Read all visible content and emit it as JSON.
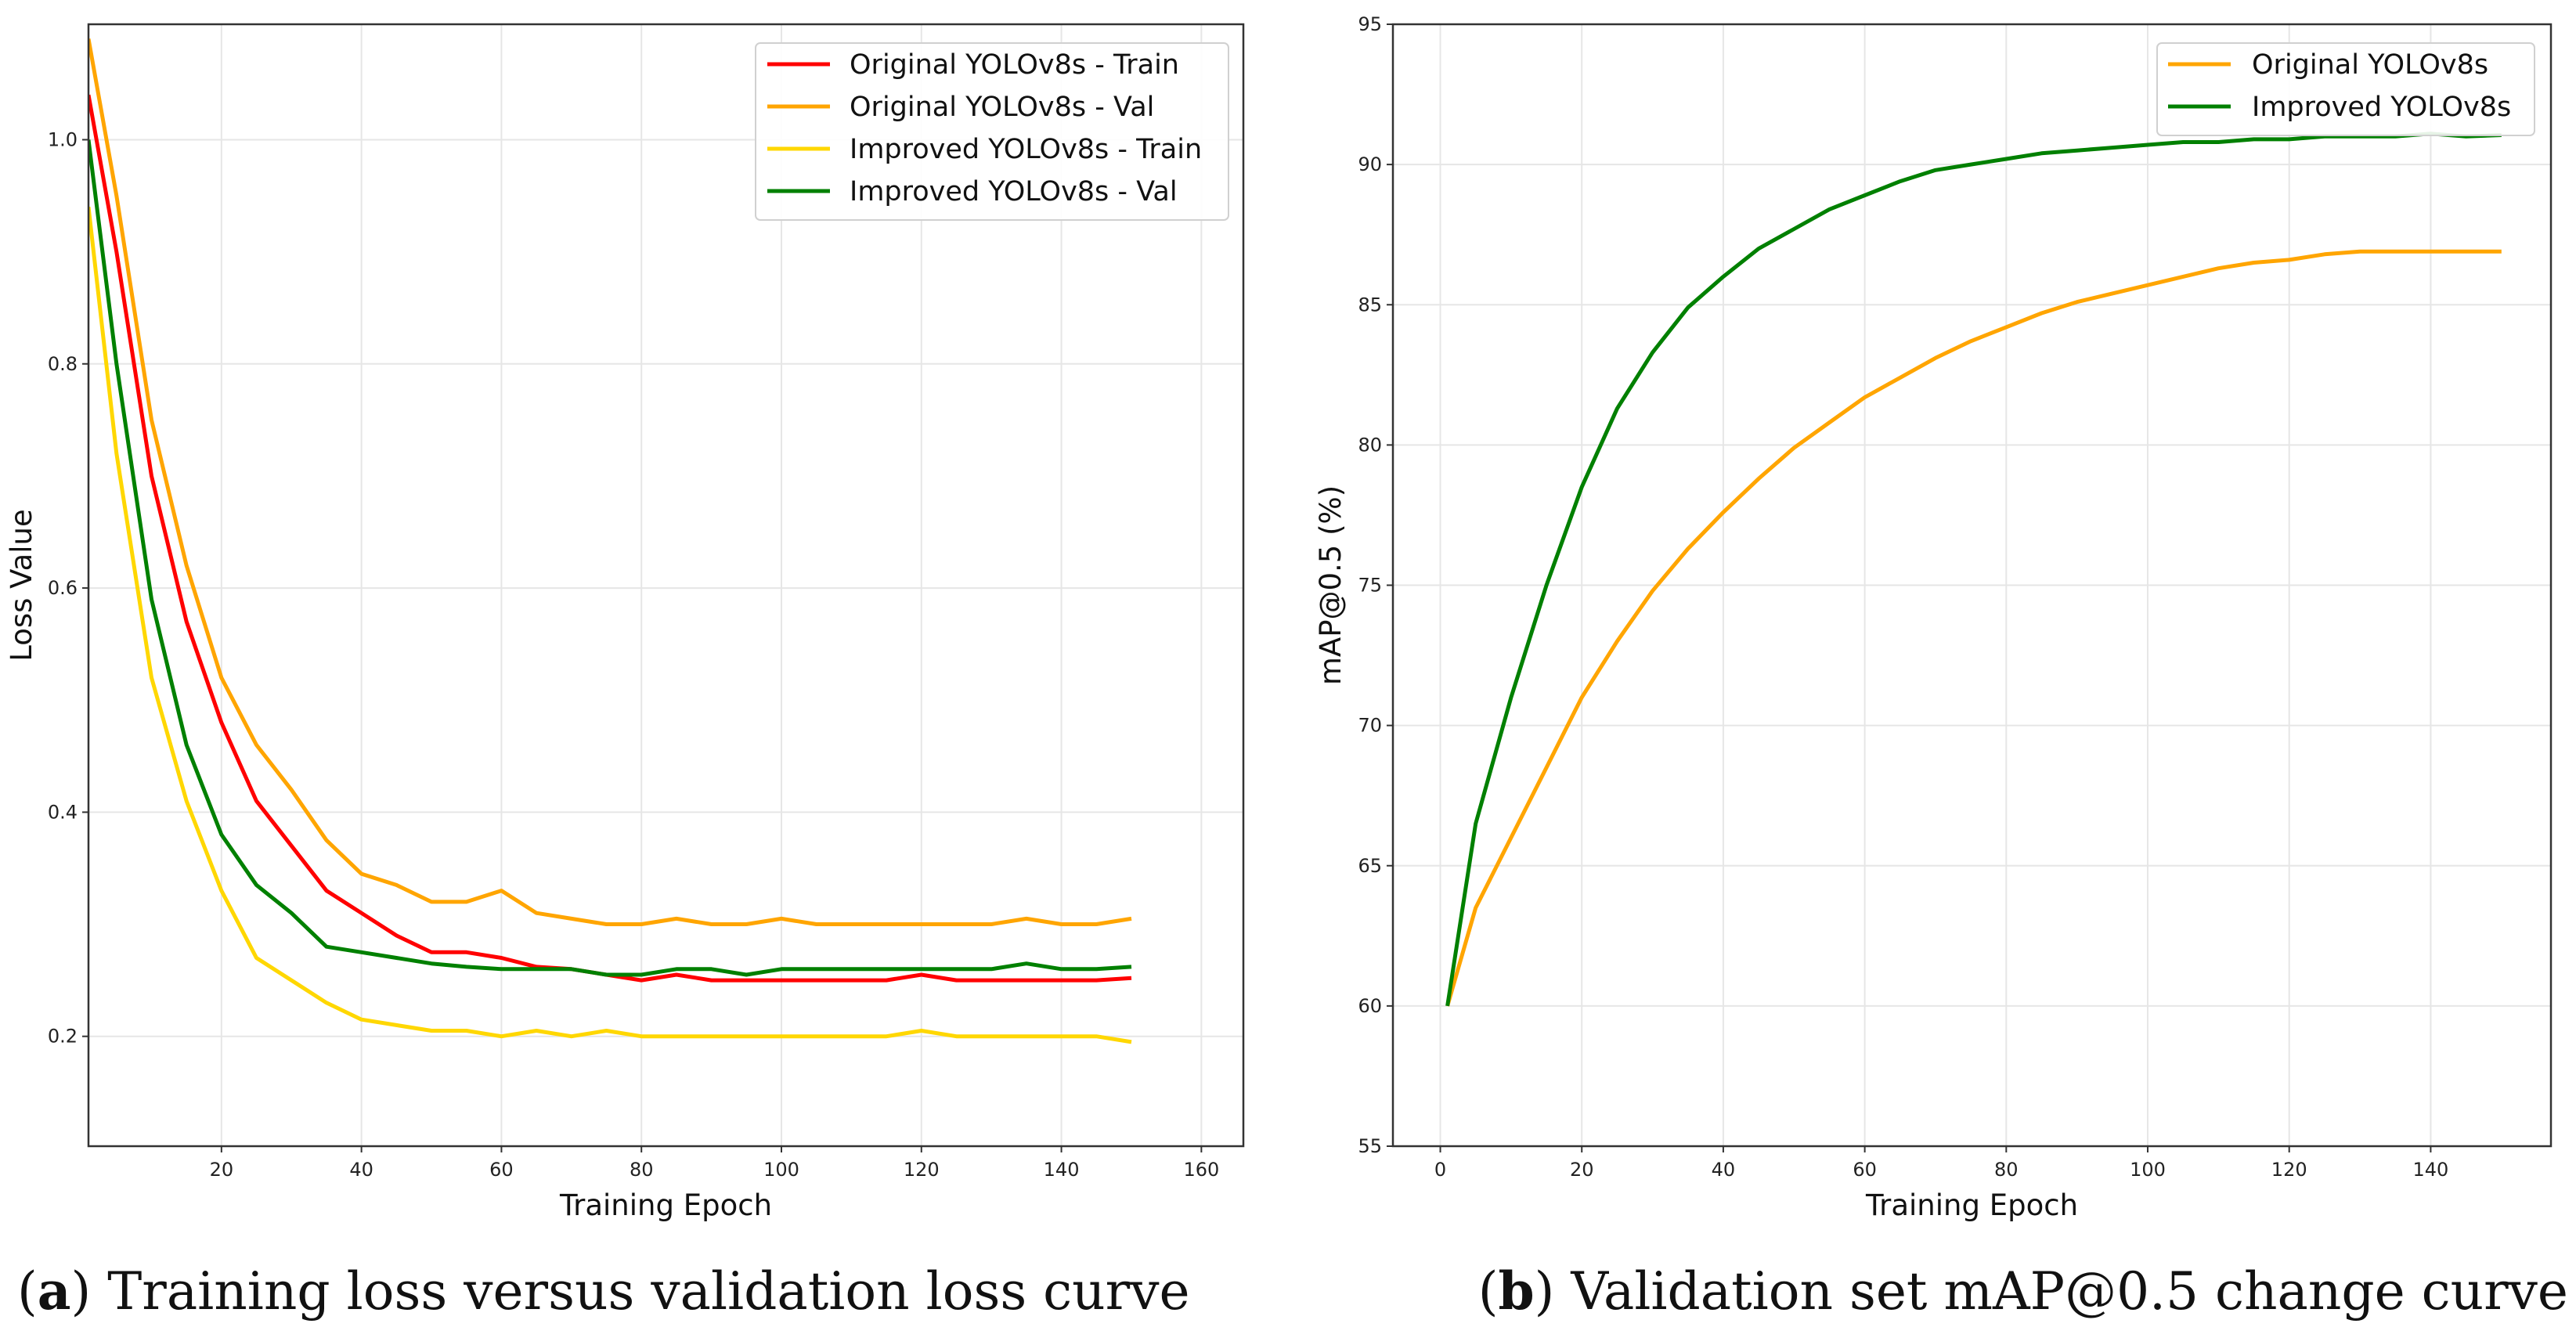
{
  "chart_data": [
    {
      "type": "line",
      "title": "",
      "xlabel": "Training Epoch",
      "ylabel": "Loss Value",
      "xlim": [
        1,
        166
      ],
      "ylim": [
        0.102,
        1.103
      ],
      "xticks": [
        20,
        40,
        60,
        80,
        100,
        120,
        140,
        160
      ],
      "yticks": [
        0.2,
        0.4,
        0.6,
        0.8,
        1.0
      ],
      "ytick_labels": [
        "0.2",
        "0.4",
        "0.6",
        "0.8",
        "1.0"
      ],
      "grid": true,
      "legend_position": "top-right",
      "x": [
        1,
        5,
        10,
        15,
        20,
        25,
        30,
        35,
        40,
        45,
        50,
        55,
        60,
        65,
        70,
        75,
        80,
        85,
        90,
        95,
        100,
        105,
        110,
        115,
        120,
        125,
        130,
        135,
        140,
        145,
        150
      ],
      "series": [
        {
          "name": "Original YOLOv8s - Train",
          "color": "#ff0000",
          "values": [
            1.04,
            0.9,
            0.7,
            0.57,
            0.48,
            0.41,
            0.37,
            0.33,
            0.31,
            0.29,
            0.275,
            0.275,
            0.27,
            0.262,
            0.26,
            0.255,
            0.25,
            0.255,
            0.25,
            0.25,
            0.25,
            0.25,
            0.25,
            0.25,
            0.255,
            0.25,
            0.25,
            0.25,
            0.25,
            0.25,
            0.252
          ]
        },
        {
          "name": "Original YOLOv8s - Val",
          "color": "#ffa500",
          "values": [
            1.09,
            0.95,
            0.75,
            0.62,
            0.52,
            0.46,
            0.42,
            0.375,
            0.345,
            0.335,
            0.32,
            0.32,
            0.33,
            0.31,
            0.305,
            0.3,
            0.3,
            0.305,
            0.3,
            0.3,
            0.305,
            0.3,
            0.3,
            0.3,
            0.3,
            0.3,
            0.3,
            0.305,
            0.3,
            0.3,
            0.305
          ]
        },
        {
          "name": "Improved YOLOv8s - Train",
          "color": "#ffd700",
          "values": [
            0.94,
            0.72,
            0.52,
            0.41,
            0.33,
            0.27,
            0.25,
            0.23,
            0.215,
            0.21,
            0.205,
            0.205,
            0.2,
            0.205,
            0.2,
            0.205,
            0.2,
            0.2,
            0.2,
            0.2,
            0.2,
            0.2,
            0.2,
            0.2,
            0.205,
            0.2,
            0.2,
            0.2,
            0.2,
            0.2,
            0.195
          ]
        },
        {
          "name": "Improved YOLOv8s - Val",
          "color": "#008000",
          "values": [
            1.0,
            0.8,
            0.59,
            0.46,
            0.38,
            0.335,
            0.31,
            0.28,
            0.275,
            0.27,
            0.265,
            0.262,
            0.26,
            0.26,
            0.26,
            0.255,
            0.255,
            0.26,
            0.26,
            0.255,
            0.26,
            0.26,
            0.26,
            0.26,
            0.26,
            0.26,
            0.26,
            0.265,
            0.26,
            0.26,
            0.262
          ]
        }
      ]
    },
    {
      "type": "line",
      "title": "",
      "xlabel": "Training Epoch",
      "ylabel": "mAP@0.5 (%)",
      "xlim": [
        -6.7,
        157
      ],
      "ylim": [
        55,
        95
      ],
      "xticks": [
        0,
        20,
        40,
        60,
        80,
        100,
        120,
        140
      ],
      "yticks": [
        55,
        60,
        65,
        70,
        75,
        80,
        85,
        90,
        95
      ],
      "ytick_labels": [
        "55",
        "60",
        "65",
        "70",
        "75",
        "80",
        "85",
        "90",
        "95"
      ],
      "grid": true,
      "legend_position": "top-right",
      "x": [
        1,
        5,
        10,
        15,
        20,
        25,
        30,
        35,
        40,
        45,
        50,
        55,
        60,
        65,
        70,
        75,
        80,
        85,
        90,
        95,
        100,
        105,
        110,
        115,
        120,
        125,
        130,
        135,
        140,
        145,
        150
      ],
      "series": [
        {
          "name": "Original YOLOv8s",
          "color": "#ffa500",
          "values": [
            60,
            63.5,
            66,
            68.5,
            71,
            73,
            74.8,
            76.3,
            77.6,
            78.8,
            79.9,
            80.8,
            81.7,
            82.4,
            83.1,
            83.7,
            84.2,
            84.7,
            85.1,
            85.4,
            85.7,
            86.0,
            86.3,
            86.5,
            86.6,
            86.8,
            86.9,
            86.9,
            86.9,
            86.9,
            86.9
          ]
        },
        {
          "name": "Improved YOLOv8s",
          "color": "#008000",
          "values": [
            60,
            66.5,
            71,
            75,
            78.5,
            81.3,
            83.3,
            84.9,
            86,
            87,
            87.7,
            88.4,
            88.9,
            89.4,
            89.8,
            90.0,
            90.2,
            90.4,
            90.5,
            90.6,
            90.7,
            90.8,
            90.8,
            90.9,
            90.9,
            91.0,
            91.0,
            91.0,
            91.1,
            91.0,
            91.05
          ]
        }
      ]
    }
  ],
  "captions": {
    "a_letter": "a",
    "a_text": "Training loss versus validation loss curve",
    "b_letter": "b",
    "b_text": "Validation set mAP@0.5 change curve"
  }
}
